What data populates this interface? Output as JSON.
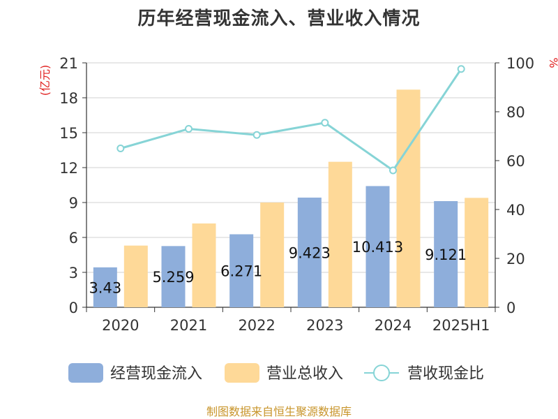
{
  "title": "历年经营现金流入、营业收入情况",
  "source": "制图数据来自恒生聚源数据库",
  "left_axis_unit": "(亿元)",
  "right_axis_unit": "%",
  "colors": {
    "inflow": "#8eaedb",
    "revenue": "#fed998",
    "ratio": "#86d4d6",
    "unit": "#e0201f",
    "title": "#333333",
    "source": "#c8952b"
  },
  "chart_data": {
    "type": "bar",
    "title": "历年经营现金流入、营业收入情况",
    "categories": [
      "2020",
      "2021",
      "2022",
      "2023",
      "2024",
      "2025H1"
    ],
    "series": [
      {
        "name": "经营现金流入",
        "type": "bar",
        "axis": "left",
        "values": [
          3.43,
          5.259,
          6.271,
          9.423,
          10.413,
          9.121
        ],
        "labels": [
          "3.43",
          "5.259",
          "6.271",
          "9.423",
          "10.413",
          "9.121"
        ]
      },
      {
        "name": "营业总收入",
        "type": "bar",
        "axis": "left",
        "values": [
          5.3,
          7.2,
          9.0,
          12.5,
          18.7,
          9.4
        ]
      },
      {
        "name": "营收现金比",
        "type": "line",
        "axis": "right",
        "values": [
          65,
          73,
          70.5,
          75.5,
          56,
          97.5
        ]
      }
    ],
    "left_axis": {
      "label": "(亿元)",
      "ylim": [
        0,
        21
      ],
      "ticks": [
        0,
        3,
        6,
        9,
        12,
        15,
        18,
        21
      ]
    },
    "right_axis": {
      "label": "%",
      "ylim": [
        0,
        100
      ],
      "ticks": [
        0,
        20,
        40,
        60,
        80,
        100
      ]
    },
    "grid": true,
    "legend_position": "bottom"
  }
}
